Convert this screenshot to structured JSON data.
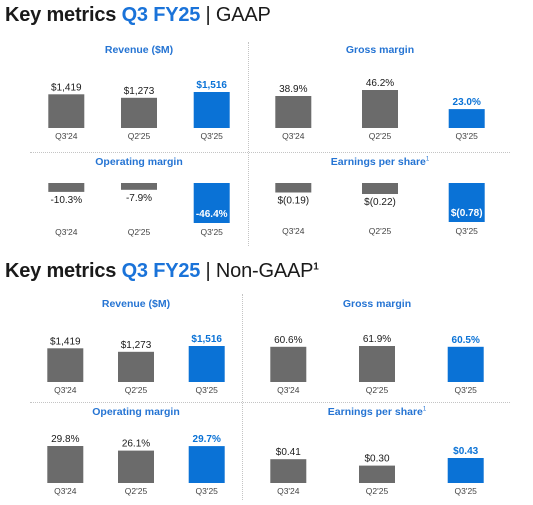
{
  "sections": [
    {
      "id": "gaap",
      "title_prefix": "Key metrics ",
      "title_period": "Q3 FY25",
      "title_separator": " | ",
      "title_suffix": "GAAP",
      "title_footnote": ""
    },
    {
      "id": "nongaap",
      "title_prefix": "Key metrics ",
      "title_period": "Q3 FY25",
      "title_separator": " | ",
      "title_suffix": "Non-GAAP",
      "title_footnote": "1"
    }
  ],
  "panels": [
    {
      "title": "Revenue ($M)",
      "footnote": ""
    },
    {
      "title": "Gross margin",
      "footnote": ""
    },
    {
      "title": "Operating margin",
      "footnote": ""
    },
    {
      "title": "Earnings per share",
      "footnote": "1"
    },
    {
      "title": "Revenue ($M)",
      "footnote": ""
    },
    {
      "title": "Gross margin",
      "footnote": ""
    },
    {
      "title": "Operating margin",
      "footnote": ""
    },
    {
      "title": "Earnings per share",
      "footnote": "1"
    }
  ],
  "colors": {
    "prior_bar": "#6b6b6b",
    "current_bar": "#0a72d6",
    "current_label_text": "#ffffff",
    "title_accent": "#2574d3",
    "heading_accent": "#1a73d9",
    "text": "#1a1a1a"
  },
  "chart_data": [
    {
      "type": "bar",
      "section": "GAAP",
      "title": "Revenue ($M)",
      "categories": [
        "Q3'24",
        "Q2'25",
        "Q3'25"
      ],
      "values": [
        1419,
        1273,
        1516
      ],
      "labels": [
        "$1,419",
        "$1,273",
        "$1,516"
      ],
      "highlight_index": 2
    },
    {
      "type": "bar",
      "section": "GAAP",
      "title": "Gross margin",
      "categories": [
        "Q3'24",
        "Q2'25",
        "Q3'25"
      ],
      "values": [
        38.9,
        46.2,
        23.0
      ],
      "labels": [
        "38.9%",
        "46.2%",
        "23.0%"
      ],
      "highlight_index": 2
    },
    {
      "type": "bar",
      "section": "GAAP",
      "title": "Operating margin",
      "categories": [
        "Q3'24",
        "Q2'25",
        "Q3'25"
      ],
      "values": [
        -10.3,
        -7.9,
        -46.4
      ],
      "labels": [
        "-10.3%",
        "-7.9%",
        "-46.4%"
      ],
      "highlight_index": 2
    },
    {
      "type": "bar",
      "section": "GAAP",
      "title": "Earnings per share",
      "categories": [
        "Q3'24",
        "Q2'25",
        "Q3'25"
      ],
      "values": [
        -0.19,
        -0.22,
        -0.78
      ],
      "labels": [
        "$(0.19)",
        "$(0.22)",
        "$(0.78)"
      ],
      "highlight_index": 2
    },
    {
      "type": "bar",
      "section": "Non-GAAP",
      "title": "Revenue ($M)",
      "categories": [
        "Q3'24",
        "Q2'25",
        "Q3'25"
      ],
      "values": [
        1419,
        1273,
        1516
      ],
      "labels": [
        "$1,419",
        "$1,273",
        "$1,516"
      ],
      "highlight_index": 2
    },
    {
      "type": "bar",
      "section": "Non-GAAP",
      "title": "Gross margin",
      "categories": [
        "Q3'24",
        "Q2'25",
        "Q3'25"
      ],
      "values": [
        60.6,
        61.9,
        60.5
      ],
      "labels": [
        "60.6%",
        "61.9%",
        "60.5%"
      ],
      "highlight_index": 2
    },
    {
      "type": "bar",
      "section": "Non-GAAP",
      "title": "Operating margin",
      "categories": [
        "Q3'24",
        "Q2'25",
        "Q3'25"
      ],
      "values": [
        29.8,
        26.1,
        29.7
      ],
      "labels": [
        "29.8%",
        "26.1%",
        "29.7%"
      ],
      "highlight_index": 2
    },
    {
      "type": "bar",
      "section": "Non-GAAP",
      "title": "Earnings per share",
      "categories": [
        "Q3'24",
        "Q2'25",
        "Q3'25"
      ],
      "values": [
        0.41,
        0.3,
        0.43
      ],
      "labels": [
        "$0.41",
        "$0.30",
        "$0.43"
      ],
      "highlight_index": 2
    }
  ]
}
